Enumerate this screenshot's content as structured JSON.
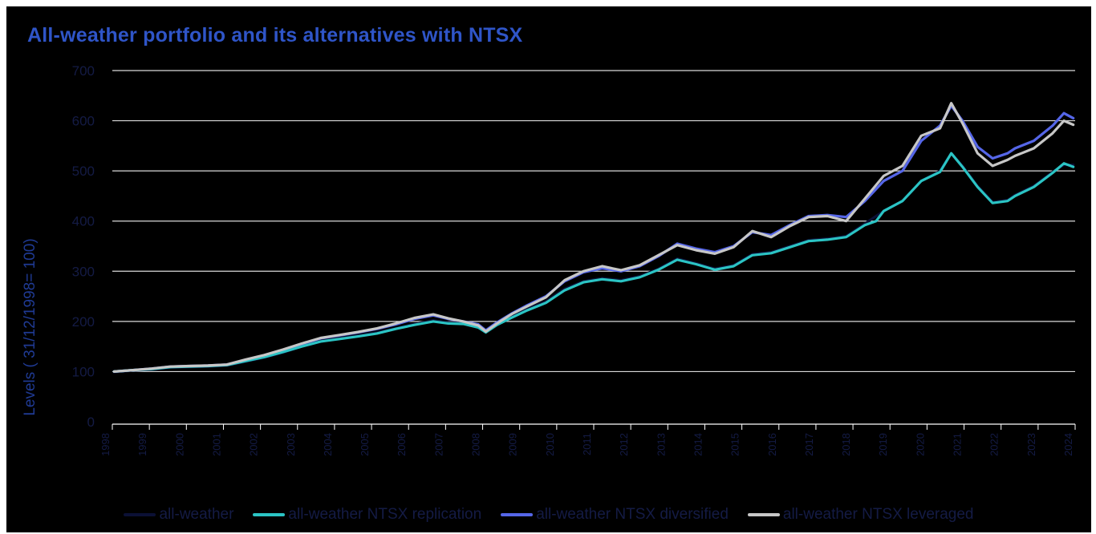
{
  "chart_data": {
    "type": "line",
    "title": "All-weather portfolio and its alternatives with NTSX",
    "xlabel": "",
    "ylabel": "Levels ( 31/12/1998= 100)",
    "ylim": [
      0,
      700
    ],
    "yticks": [
      0,
      100,
      200,
      300,
      400,
      500,
      600,
      700
    ],
    "xticks": [
      "1998",
      "1999",
      "2000",
      "2001",
      "2002",
      "2003",
      "2004",
      "2005",
      "2006",
      "2007",
      "2008",
      "2009",
      "2010",
      "2011",
      "2012",
      "2013",
      "2014",
      "2015",
      "2016",
      "2017",
      "2018",
      "2019",
      "2020",
      "2021",
      "2022",
      "2023",
      "2024"
    ],
    "xlim": [
      1998.95,
      2024.6
    ],
    "grid": true,
    "legend_position": "bottom",
    "series": [
      {
        "name": "all-weather",
        "color": "#0b1035",
        "x": [
          1999.0,
          1999.5,
          2000.0,
          2000.5,
          2001.0,
          2001.5,
          2002.0,
          2002.5,
          2003.0,
          2003.5,
          2004.0,
          2004.5,
          2005.0,
          2005.5,
          2006.0,
          2006.5,
          2007.0,
          2007.5,
          2007.9,
          2008.3,
          2008.7,
          2008.9,
          2009.2,
          2009.6,
          2010.0,
          2010.5,
          2011.0,
          2011.5,
          2012.0,
          2012.5,
          2013.0,
          2013.5,
          2014.0,
          2014.5,
          2015.0,
          2015.5,
          2016.0,
          2016.5,
          2017.0,
          2017.5,
          2018.0,
          2018.5,
          2019.0,
          2019.5,
          2020.0,
          2020.5,
          2021.0,
          2021.3,
          2021.6,
          2022.0,
          2022.4,
          2022.8,
          2023.0,
          2023.5,
          2024.0,
          2024.3,
          2024.55
        ],
        "values": [
          99,
          102,
          104,
          108,
          109,
          110,
          112,
          120,
          128,
          138,
          150,
          160,
          166,
          172,
          178,
          186,
          195,
          202,
          198,
          196,
          190,
          180,
          195,
          210,
          225,
          240,
          265,
          280,
          286,
          282,
          290,
          305,
          325,
          316,
          305,
          312,
          334,
          338,
          350,
          362,
          365,
          370,
          395,
          420,
          440,
          480,
          500,
          535,
          510,
          470,
          438,
          442,
          452,
          470,
          498,
          512,
          512
        ]
      },
      {
        "name": "all-weather NTSX replication",
        "color": "#2bc4c4",
        "x": [
          1999.0,
          1999.5,
          2000.0,
          2000.5,
          2001.0,
          2001.5,
          2002.0,
          2002.5,
          2003.0,
          2003.5,
          2004.0,
          2004.5,
          2005.0,
          2005.5,
          2006.0,
          2006.5,
          2007.0,
          2007.5,
          2007.9,
          2008.3,
          2008.7,
          2008.9,
          2009.2,
          2009.6,
          2010.0,
          2010.5,
          2011.0,
          2011.5,
          2012.0,
          2012.5,
          2013.0,
          2013.5,
          2014.0,
          2014.5,
          2015.0,
          2015.5,
          2016.0,
          2016.5,
          2017.0,
          2017.5,
          2018.0,
          2018.5,
          2019.0,
          2019.3,
          2019.5,
          2020.0,
          2020.5,
          2021.0,
          2021.3,
          2021.6,
          2022.0,
          2022.4,
          2022.8,
          2023.0,
          2023.5,
          2024.0,
          2024.3,
          2024.55
        ],
        "values": [
          100,
          103,
          105,
          109,
          110,
          111,
          113,
          121,
          129,
          139,
          150,
          160,
          165,
          170,
          176,
          185,
          193,
          200,
          196,
          195,
          188,
          178,
          193,
          208,
          222,
          237,
          262,
          278,
          284,
          280,
          288,
          303,
          323,
          314,
          303,
          310,
          332,
          336,
          348,
          360,
          363,
          368,
          392,
          400,
          420,
          440,
          480,
          498,
          535,
          508,
          468,
          436,
          440,
          450,
          468,
          496,
          515,
          508
        ]
      },
      {
        "name": "all-weather NTSX diversified",
        "color": "#5566e8",
        "x": [
          1999.0,
          1999.5,
          2000.0,
          2000.5,
          2001.0,
          2001.5,
          2002.0,
          2002.5,
          2003.0,
          2003.5,
          2004.0,
          2004.5,
          2005.0,
          2005.5,
          2006.0,
          2006.5,
          2007.0,
          2007.5,
          2007.9,
          2008.3,
          2008.7,
          2008.9,
          2009.2,
          2009.6,
          2010.0,
          2010.5,
          2011.0,
          2011.5,
          2012.0,
          2012.5,
          2013.0,
          2013.5,
          2014.0,
          2014.5,
          2015.0,
          2015.5,
          2016.0,
          2016.5,
          2017.0,
          2017.5,
          2018.0,
          2018.5,
          2019.0,
          2019.5,
          2020.0,
          2020.5,
          2021.0,
          2021.3,
          2021.6,
          2022.0,
          2022.4,
          2022.8,
          2023.0,
          2023.5,
          2024.0,
          2024.3,
          2024.55
        ],
        "values": [
          100,
          103,
          106,
          110,
          111,
          112,
          114,
          123,
          132,
          143,
          155,
          166,
          172,
          178,
          185,
          194,
          205,
          212,
          205,
          200,
          194,
          182,
          198,
          216,
          232,
          250,
          280,
          298,
          306,
          300,
          310,
          330,
          355,
          345,
          338,
          350,
          378,
          372,
          392,
          410,
          412,
          408,
          440,
          480,
          500,
          560,
          590,
          630,
          600,
          548,
          525,
          535,
          545,
          560,
          590,
          615,
          605
        ]
      },
      {
        "name": "all-weather NTSX leveraged",
        "color": "#c7c7c7",
        "x": [
          1999.0,
          1999.5,
          2000.0,
          2000.5,
          2001.0,
          2001.5,
          2002.0,
          2002.5,
          2003.0,
          2003.5,
          2004.0,
          2004.5,
          2005.0,
          2005.5,
          2006.0,
          2006.5,
          2007.0,
          2007.5,
          2007.9,
          2008.3,
          2008.7,
          2008.9,
          2009.2,
          2009.6,
          2010.0,
          2010.5,
          2011.0,
          2011.5,
          2012.0,
          2012.5,
          2013.0,
          2013.5,
          2014.0,
          2014.5,
          2015.0,
          2015.5,
          2016.0,
          2016.5,
          2017.0,
          2017.5,
          2018.0,
          2018.5,
          2019.0,
          2019.5,
          2020.0,
          2020.5,
          2021.0,
          2021.3,
          2021.6,
          2022.0,
          2022.4,
          2022.8,
          2023.0,
          2023.5,
          2024.0,
          2024.3,
          2024.55
        ],
        "values": [
          100,
          103,
          106,
          110,
          111,
          112,
          114,
          124,
          133,
          144,
          156,
          167,
          173,
          179,
          186,
          196,
          207,
          214,
          206,
          200,
          192,
          180,
          196,
          215,
          230,
          248,
          282,
          300,
          310,
          302,
          312,
          332,
          352,
          342,
          335,
          348,
          380,
          368,
          390,
          408,
          410,
          400,
          445,
          490,
          510,
          570,
          585,
          635,
          595,
          535,
          510,
          522,
          530,
          545,
          575,
          600,
          592
        ]
      }
    ]
  }
}
